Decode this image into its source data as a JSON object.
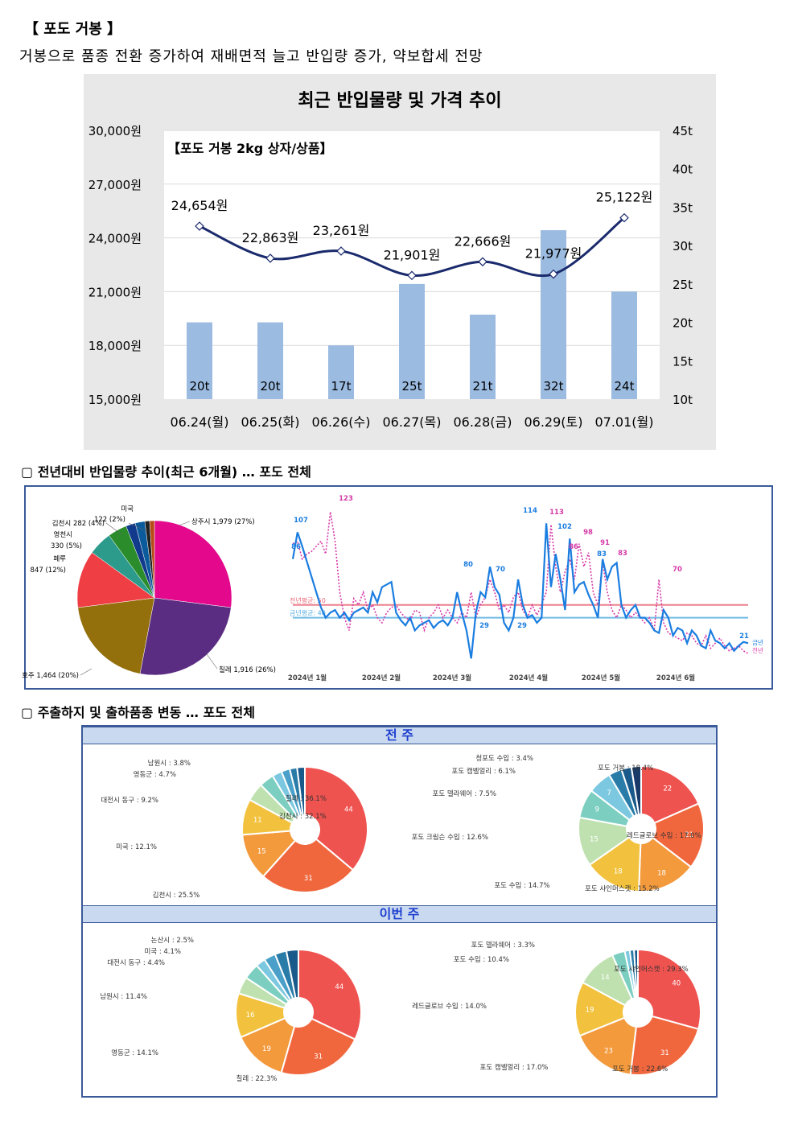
{
  "header": {
    "title": "【 포도 거봉 】",
    "subtitle": "거봉으로 품종 전환 증가하여 재배면적 늘고 반입량 증가, 약보합세 전망"
  },
  "chart_data": [
    {
      "type": "bar+line",
      "title": "최근 반입물량 및 가격 추이",
      "inner_label": "【포도 거봉 2kg 상자/상품】",
      "categories": [
        "06.24(월)",
        "06.25(화)",
        "06.26(수)",
        "06.27(목)",
        "06.28(금)",
        "06.29(토)",
        "07.01(월)"
      ],
      "left_ticks": [
        "15,000원",
        "18,000원",
        "21,000원",
        "24,000원",
        "27,000원",
        "30,000원"
      ],
      "right_ticks": [
        "10t",
        "15t",
        "20t",
        "25t",
        "30t",
        "35t",
        "40t",
        "45t"
      ],
      "ylim_price": [
        15000,
        30000
      ],
      "ylim_volume": [
        10,
        45
      ],
      "series": [
        {
          "values": [
            20,
            20,
            17,
            25,
            21,
            32,
            24
          ],
          "labels": [
            "20t",
            "20t",
            "17t",
            "25t",
            "21t",
            "32t",
            "24t"
          ],
          "color": "#9bbbe0"
        },
        {
          "values": [
            24654,
            22863,
            23261,
            21901,
            22666,
            21977,
            25122
          ],
          "labels": [
            "24,654원",
            "22,863원",
            "23,261원",
            "21,901원",
            "22,666원",
            "21,977원",
            "25,122원"
          ],
          "color": "#1a2a6c"
        }
      ]
    },
    {
      "type": "pie",
      "labels": [
        "상주시 1,979 (27%)",
        "칠레 1,916 (26%)",
        "호주 1,464 (20%)",
        "페루",
        "847 (12%)",
        "영천시",
        "330 (5%)",
        "김천시 282 (4%)",
        "미국",
        "122 (2%)"
      ],
      "slices": [
        {
          "value": 27,
          "color": "#e3088c"
        },
        {
          "value": 26,
          "color": "#5a2d82"
        },
        {
          "value": 20,
          "color": "#94700c"
        },
        {
          "value": 12,
          "color": "#ef3f45"
        },
        {
          "value": 5,
          "color": "#2c9b8c"
        },
        {
          "value": 4,
          "color": "#2a8c2a"
        },
        {
          "value": 2,
          "color": "#123a8c"
        },
        {
          "value": 2,
          "color": "#0a5a9c"
        },
        {
          "value": 1,
          "color": "#222222"
        },
        {
          "value": 1,
          "color": "#b84a16"
        }
      ]
    },
    {
      "type": "line",
      "x_ticks": [
        "2024년 1월",
        "2024년 2월",
        "2024년 3월",
        "2024년 4월",
        "2024년 5월",
        "2024년 6월"
      ],
      "ref_lines": [
        {
          "label": "전년평균: 50",
          "value": 50,
          "color": "#e86a78"
        },
        {
          "label": "금년평균: 40",
          "value": 40,
          "color": "#5aaee0"
        }
      ],
      "peak_labels": [
        "107",
        "86",
        "123",
        "80",
        "70",
        "29",
        "29",
        "114",
        "113",
        "102",
        "98",
        "86",
        "91",
        "83",
        "83",
        "70",
        "21"
      ],
      "legend": [
        "금년",
        "전년"
      ],
      "series": [
        {
          "color": "#1a7de0",
          "values": [
            86,
            107,
            96,
            84,
            72,
            60,
            48,
            40,
            44,
            46,
            40,
            44,
            38,
            44,
            46,
            48,
            44,
            60,
            52,
            64,
            66,
            68,
            44,
            38,
            34,
            40,
            30,
            34,
            36,
            38,
            32,
            36,
            38,
            34,
            40,
            60,
            44,
            30,
            8,
            44,
            60,
            56,
            80,
            64,
            58,
            36,
            30,
            40,
            70,
            50,
            40,
            42,
            36,
            40,
            114,
            64,
            90,
            70,
            46,
            102,
            60,
            66,
            68,
            58,
            50,
            40,
            86,
            70,
            80,
            83,
            50,
            40,
            46,
            50,
            40,
            40,
            36,
            30,
            28,
            46,
            40,
            26,
            32,
            30,
            20,
            30,
            26,
            18,
            16,
            30,
            22,
            20,
            16,
            20,
            14,
            18,
            21,
            20
          ]
        },
        {
          "color": "#d63aa8",
          "values": [
            98,
            100,
            86,
            90,
            92,
            96,
            100,
            90,
            123,
            100,
            60,
            40,
            30,
            55,
            50,
            60,
            46,
            50,
            40,
            36,
            44,
            48,
            50,
            44,
            40,
            38,
            46,
            44,
            30,
            40,
            44,
            50,
            40,
            46,
            40,
            36,
            44,
            40,
            60,
            40,
            50,
            56,
            70,
            60,
            46,
            50,
            44,
            56,
            60,
            46,
            40,
            50,
            42,
            50,
            60,
            113,
            80,
            60,
            76,
            86,
            70,
            98,
            80,
            91,
            60,
            50,
            83,
            60,
            46,
            40,
            50,
            46,
            40,
            44,
            40,
            36,
            40,
            30,
            70,
            36,
            28,
            26,
            24,
            22,
            28,
            26,
            20,
            18,
            26,
            16,
            20,
            24,
            18,
            14,
            16,
            18,
            14,
            12
          ]
        }
      ]
    },
    {
      "type": "donut",
      "title": "전 주",
      "slices": [
        {
          "label": "칠레 : 36.1%",
          "value": 36.1,
          "inner": "44",
          "color": "#ef5350"
        },
        {
          "label": "김천시 : 25.5%",
          "value": 25.5,
          "inner": "31",
          "color": "#f0673e"
        },
        {
          "label": "미국 : 12.1%",
          "value": 12.1,
          "inner": "15",
          "color": "#f39a3c"
        },
        {
          "label": "대전시 동구 : 9.2%",
          "value": 9.2,
          "inner": "11",
          "color": "#f2c23e"
        },
        {
          "label": "영동군 : 4.7%",
          "value": 4.7,
          "inner": "",
          "color": "#bfe1b0"
        },
        {
          "label": "남원시 : 3.8%",
          "value": 3.8,
          "inner": "",
          "color": "#7ccfc0"
        },
        {
          "label": "",
          "value": 2.5,
          "inner": "",
          "color": "#7cc8e0"
        },
        {
          "label": "",
          "value": 2.2,
          "inner": "",
          "color": "#4aa0c8"
        },
        {
          "label": "",
          "value": 1.9,
          "inner": "",
          "color": "#2a7ca8"
        },
        {
          "label": "",
          "value": 2.0,
          "inner": "",
          "color": "#1a5a8a"
        }
      ]
    },
    {
      "type": "donut",
      "title": "전 주",
      "slices": [
        {
          "label": "포도 거봉 : 18.4%",
          "value": 18.4,
          "inner": "22",
          "color": "#ef5350"
        },
        {
          "label": "레드글로브 수입 : 17.0%",
          "value": 17.0,
          "inner": "21",
          "color": "#f0673e"
        },
        {
          "label": "포도 샤인머스캣 : 15.2%",
          "value": 15.2,
          "inner": "18",
          "color": "#f39a3c"
        },
        {
          "label": "포도 수입 : 14.7%",
          "value": 14.7,
          "inner": "18",
          "color": "#f2c23e"
        },
        {
          "label": "포도 크림슨 수입 : 12.6%",
          "value": 12.6,
          "inner": "15",
          "color": "#bfe1b0"
        },
        {
          "label": "포도 델라웨어 : 7.5%",
          "value": 7.5,
          "inner": "9",
          "color": "#7ccfc0"
        },
        {
          "label": "포도 캠벨얼리 : 6.1%",
          "value": 6.1,
          "inner": "7",
          "color": "#7cc8e0"
        },
        {
          "label": "청포도 수입 : 3.4%",
          "value": 3.4,
          "inner": "",
          "color": "#2a7ca8"
        },
        {
          "label": "",
          "value": 2.6,
          "inner": "",
          "color": "#1a5a8a"
        },
        {
          "label": "",
          "value": 2.5,
          "inner": "",
          "color": "#1a3a6a"
        }
      ]
    },
    {
      "type": "donut",
      "title": "이번 주",
      "slices": [
        {
          "label": "김천시 : 32.1%",
          "value": 32.1,
          "inner": "44",
          "color": "#ef5350"
        },
        {
          "label": "칠레 : 22.3%",
          "value": 22.3,
          "inner": "31",
          "color": "#f0673e"
        },
        {
          "label": "영동군 : 14.1%",
          "value": 14.1,
          "inner": "19",
          "color": "#f39a3c"
        },
        {
          "label": "남원시 : 11.4%",
          "value": 11.4,
          "inner": "16",
          "color": "#f2c23e"
        },
        {
          "label": "대전시 동구 : 4.4%",
          "value": 4.4,
          "inner": "",
          "color": "#bfe1b0"
        },
        {
          "label": "미국 : 4.1%",
          "value": 4.1,
          "inner": "",
          "color": "#7ccfc0"
        },
        {
          "label": "논산시 : 2.5%",
          "value": 2.5,
          "inner": "",
          "color": "#7cc8e0"
        },
        {
          "label": "",
          "value": 3.0,
          "inner": "",
          "color": "#4aa0c8"
        },
        {
          "label": "",
          "value": 3.0,
          "inner": "",
          "color": "#2a7ca8"
        },
        {
          "label": "",
          "value": 3.1,
          "inner": "",
          "color": "#1a5a8a"
        }
      ]
    },
    {
      "type": "donut",
      "title": "이번 주",
      "slices": [
        {
          "label": "포도 샤인머스캣 : 29.3%",
          "value": 29.3,
          "inner": "40",
          "color": "#ef5350"
        },
        {
          "label": "포도 거봉 : 22.6%",
          "value": 22.6,
          "inner": "31",
          "color": "#f0673e"
        },
        {
          "label": "포도 캠벨얼리 : 17.0%",
          "value": 17.0,
          "inner": "23",
          "color": "#f39a3c"
        },
        {
          "label": "레드글로브 수입 : 14.0%",
          "value": 14.0,
          "inner": "19",
          "color": "#f2c23e"
        },
        {
          "label": "포도 수입 : 10.4%",
          "value": 10.4,
          "inner": "14",
          "color": "#bfe1b0"
        },
        {
          "label": "포도 델라웨어 : 3.3%",
          "value": 3.3,
          "inner": "",
          "color": "#7ccfc0"
        },
        {
          "label": "",
          "value": 1.3,
          "inner": "",
          "color": "#7cc8e0"
        },
        {
          "label": "",
          "value": 1.1,
          "inner": "",
          "color": "#2a7ca8"
        },
        {
          "label": "",
          "value": 1.0,
          "inner": "",
          "color": "#1a5a8a"
        }
      ]
    }
  ],
  "section2": {
    "title": "▢  전년대비 반입물량 추이(최근 6개월) … 포도 전체"
  },
  "section3": {
    "title": "▢  주출하지 및 출하품종 변동 … 포도 전체",
    "band_prev": "전 주",
    "band_this": "이번 주"
  }
}
